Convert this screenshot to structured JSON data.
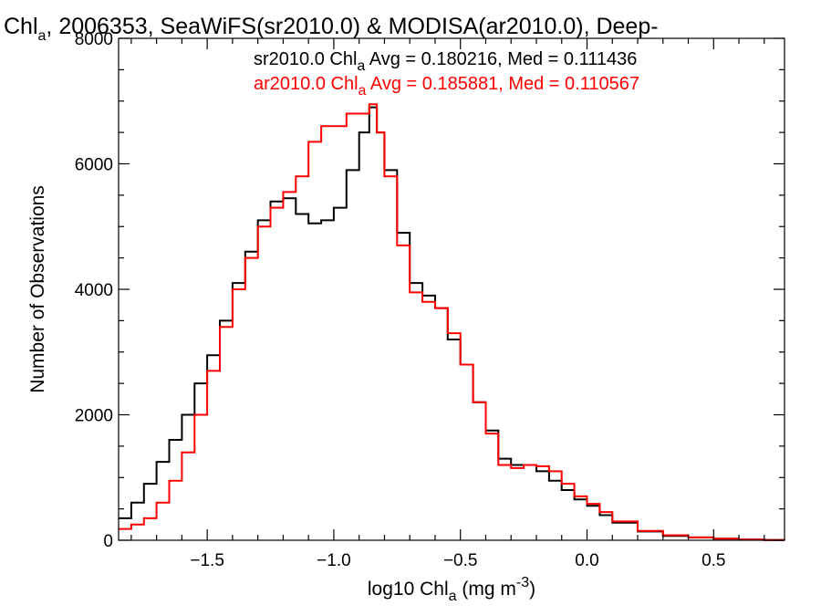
{
  "chart_data": {
    "type": "line",
    "title": {
      "pre": "Chl",
      "sub": "a",
      "post": ", 2006353, SeaWiFS(sr2010.0) & MODISA(ar2010.0), Deep-"
    },
    "xlabel": {
      "pre": "log10 Chl",
      "sub": "a",
      "mid": " (mg m",
      "sup": "-3",
      "post": ")"
    },
    "ylabel": "Number of Observations",
    "xlim": [
      -1.85,
      0.78
    ],
    "ylim": [
      0,
      8000
    ],
    "x_ticks": [
      {
        "value": -1.5,
        "label": "−1.5"
      },
      {
        "value": -1.0,
        "label": "−1.0"
      },
      {
        "value": -0.5,
        "label": "−0.5"
      },
      {
        "value": 0.0,
        "label": "0.0"
      },
      {
        "value": 0.5,
        "label": "0.5"
      }
    ],
    "y_ticks": [
      {
        "value": 0,
        "label": "0"
      },
      {
        "value": 2000,
        "label": "2000"
      },
      {
        "value": 4000,
        "label": "4000"
      },
      {
        "value": 6000,
        "label": "6000"
      },
      {
        "value": 8000,
        "label": "8000"
      }
    ],
    "step_type": "histogram",
    "series": [
      {
        "color": "#000000",
        "legend": {
          "pre": "sr2010.0 Chl",
          "sub": "a",
          "post": " Avg = 0.180216, Med = 0.111436"
        },
        "x": [
          -1.85,
          -1.8,
          -1.75,
          -1.7,
          -1.65,
          -1.6,
          -1.55,
          -1.5,
          -1.45,
          -1.4,
          -1.35,
          -1.3,
          -1.25,
          -1.2,
          -1.15,
          -1.1,
          -1.05,
          -1.0,
          -0.95,
          -0.9,
          -0.86,
          -0.83,
          -0.8,
          -0.75,
          -0.7,
          -0.65,
          -0.6,
          -0.55,
          -0.5,
          -0.45,
          -0.4,
          -0.35,
          -0.3,
          -0.25,
          -0.2,
          -0.15,
          -0.1,
          -0.05,
          0.0,
          0.05,
          0.1,
          0.2,
          0.3,
          0.4,
          0.5,
          0.6,
          0.7,
          0.78
        ],
        "y": [
          350,
          600,
          900,
          1250,
          1600,
          2000,
          2500,
          2950,
          3500,
          4100,
          4600,
          5100,
          5400,
          5450,
          5200,
          5050,
          5100,
          5300,
          5900,
          6500,
          6900,
          6500,
          5900,
          4900,
          4100,
          3900,
          3700,
          3200,
          2800,
          2200,
          1750,
          1300,
          1200,
          1200,
          1100,
          950,
          800,
          650,
          550,
          400,
          280,
          140,
          70,
          45,
          25,
          12,
          5,
          0
        ]
      },
      {
        "color": "#ff0000",
        "legend": {
          "pre": "ar2010.0 Chl",
          "sub": "a",
          "post": " Avg = 0.185881, Med = 0.110567"
        },
        "x": [
          -1.85,
          -1.8,
          -1.75,
          -1.7,
          -1.65,
          -1.6,
          -1.55,
          -1.5,
          -1.45,
          -1.4,
          -1.35,
          -1.3,
          -1.25,
          -1.2,
          -1.15,
          -1.1,
          -1.05,
          -1.0,
          -0.95,
          -0.9,
          -0.86,
          -0.83,
          -0.8,
          -0.75,
          -0.7,
          -0.65,
          -0.6,
          -0.55,
          -0.5,
          -0.45,
          -0.4,
          -0.35,
          -0.3,
          -0.25,
          -0.2,
          -0.15,
          -0.1,
          -0.05,
          0.0,
          0.05,
          0.1,
          0.2,
          0.3,
          0.4,
          0.5,
          0.6,
          0.7,
          0.78
        ],
        "y": [
          180,
          250,
          350,
          600,
          950,
          1400,
          2000,
          2700,
          3400,
          4000,
          4500,
          5000,
          5300,
          5550,
          5800,
          6350,
          6600,
          6600,
          6800,
          6800,
          6950,
          6500,
          5800,
          4700,
          3950,
          3800,
          3700,
          3300,
          2800,
          2200,
          1700,
          1200,
          1150,
          1200,
          1180,
          1100,
          900,
          700,
          580,
          450,
          300,
          150,
          80,
          45,
          25,
          12,
          5,
          0
        ]
      }
    ]
  }
}
